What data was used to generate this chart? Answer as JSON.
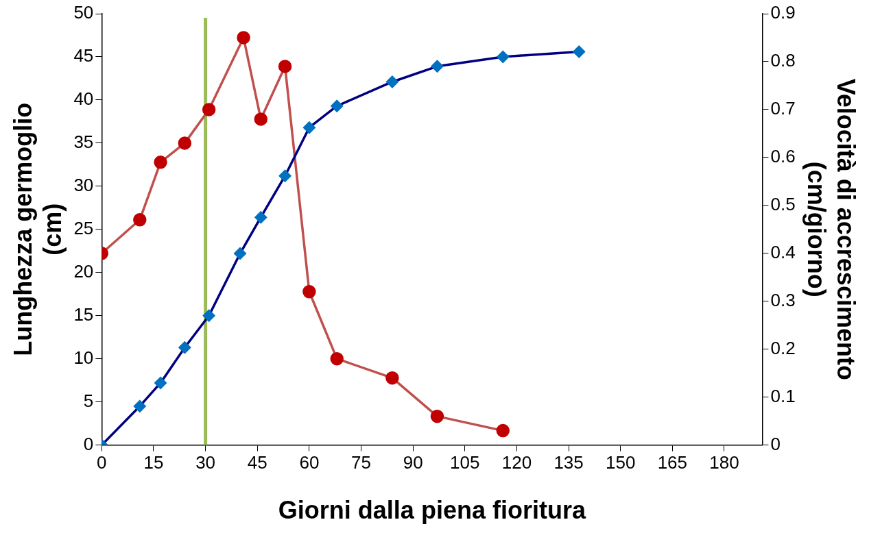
{
  "chart_data": {
    "type": "line",
    "xlabel": "Giorni dalla piena fioritura",
    "ylabel": "Lunghezza germoglio (cm)",
    "y2label": "Velocità di accrescimento (cm/giorno)",
    "xlim": [
      0,
      191
    ],
    "xticks": [
      0,
      15,
      30,
      45,
      60,
      75,
      90,
      105,
      120,
      135,
      150,
      165,
      180
    ],
    "ylim": [
      0,
      50
    ],
    "yticks": [
      0,
      5,
      10,
      15,
      20,
      25,
      30,
      35,
      40,
      45,
      50
    ],
    "y2lim": [
      0,
      0.9
    ],
    "y2ticks": [
      0,
      0.1,
      0.2,
      0.3,
      0.4,
      0.5,
      0.6,
      0.7,
      0.8,
      0.9
    ],
    "grid": false,
    "legend": false,
    "series": [
      {
        "color": "#0070c0",
        "marker": "diamond",
        "x": [
          0,
          11,
          17,
          24,
          31,
          40,
          46,
          53,
          60,
          68,
          84,
          97,
          116,
          138
        ],
        "values": [
          0,
          4.5,
          7.2,
          11.3,
          15.0,
          22.2,
          26.4,
          31.2,
          36.8,
          39.3,
          42.1,
          43.9,
          45.0,
          45.6
        ]
      },
      {
        "color": "#c00000",
        "marker": "circle",
        "axis": "y2",
        "x": [
          0,
          11,
          17,
          24,
          31,
          41,
          46,
          53,
          60,
          68,
          84,
          97,
          116
        ],
        "values": [
          0.4,
          0.47,
          0.59,
          0.63,
          0.7,
          0.85,
          0.68,
          0.79,
          0.32,
          0.18,
          0.14,
          0.06,
          0.03
        ]
      }
    ],
    "ref_lines": [
      {
        "axis": "x",
        "value": 30,
        "color": "#9bbb59"
      }
    ]
  }
}
